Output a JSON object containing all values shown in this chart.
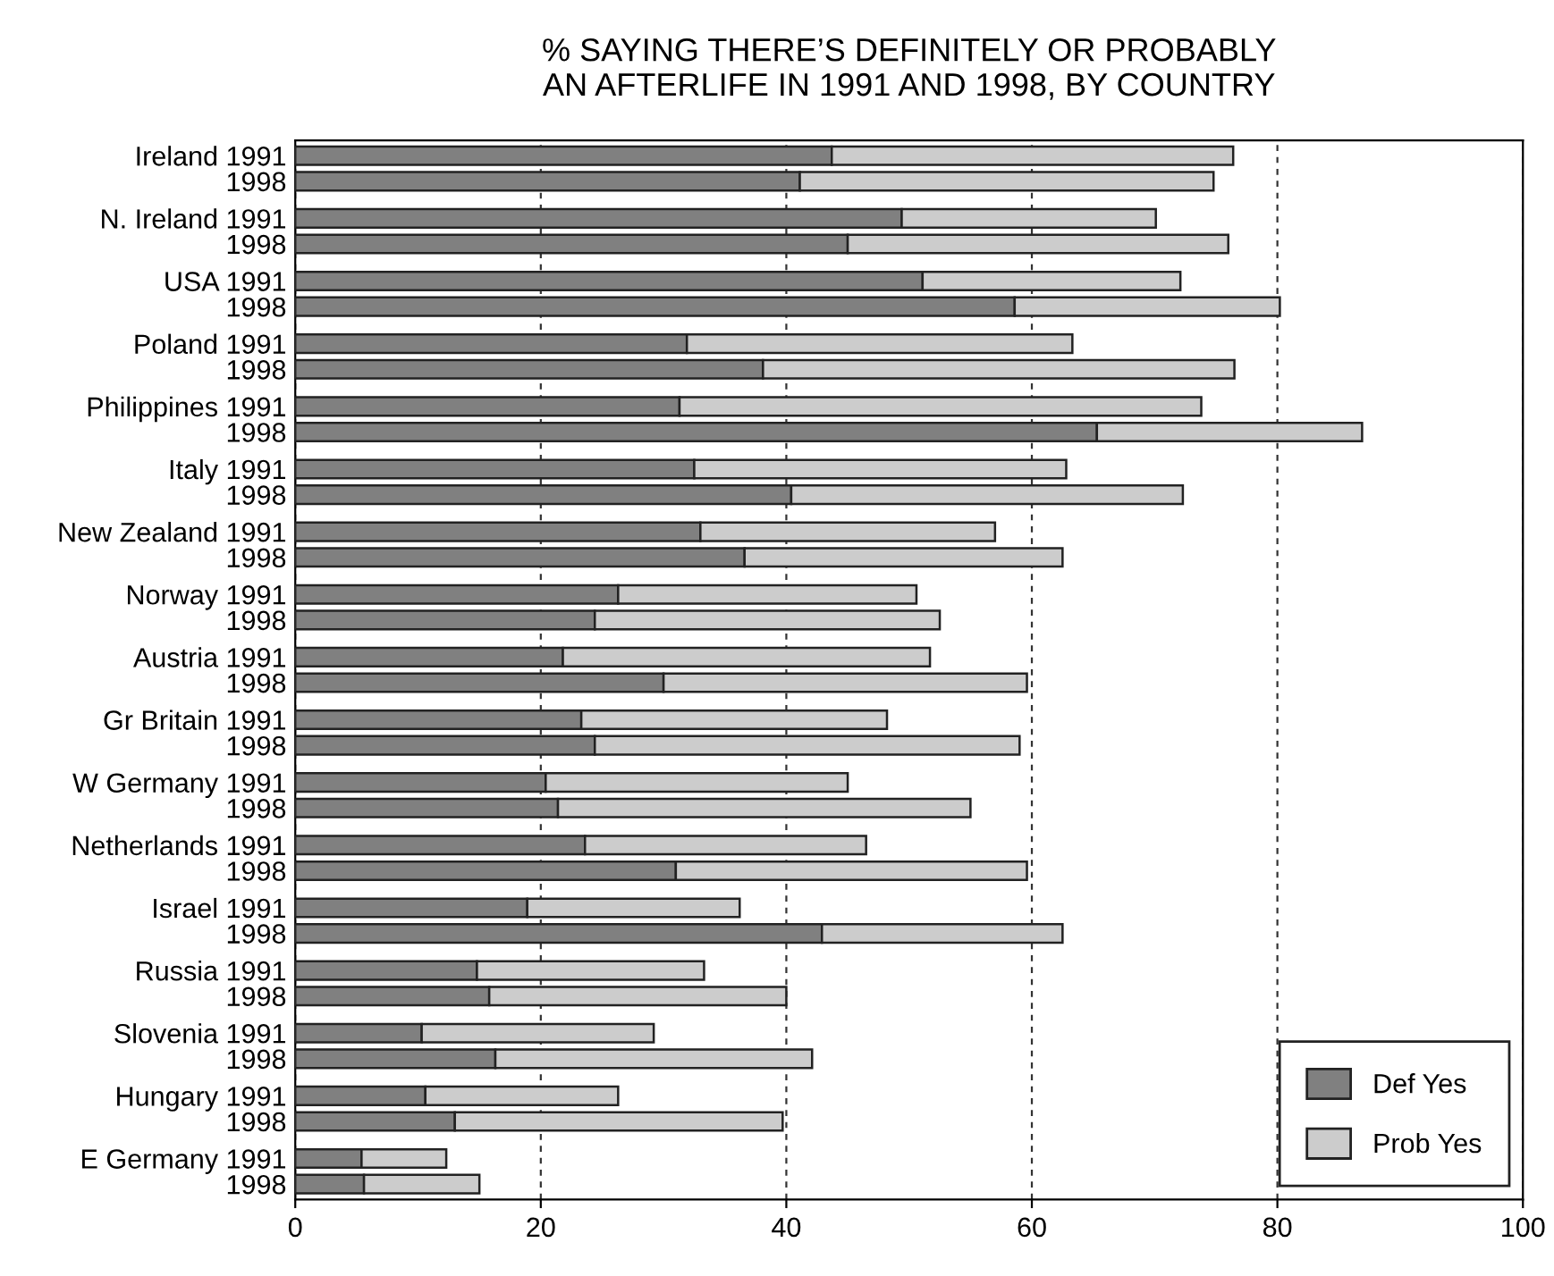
{
  "chart_data": {
    "type": "bar",
    "orientation": "horizontal",
    "stacked": true,
    "title": "% SAYING THERE’S DEFINITELY OR PROBABLY\nAN AFTERLIFE IN 1991 AND 1998, BY COUNTRY",
    "categories": [
      "Ireland 1991",
      "1998",
      "N. Ireland 1991",
      "1998",
      "USA 1991",
      "1998",
      "Poland 1991",
      "1998",
      "Philippines 1991",
      "1998",
      "Italy 1991",
      "1998",
      "New Zealand 1991",
      "1998",
      "Norway 1991",
      "1998",
      "Austria 1991",
      "1998",
      "Gr Britain 1991",
      "1998",
      "W Germany 1991",
      "1998",
      "Netherlands 1991",
      "1998",
      "Israel 1991",
      "1998",
      "Russia 1991",
      "1998",
      "Slovenia 1991",
      "1998",
      "Hungary 1991",
      "1998",
      "E Germany 1991",
      "1998"
    ],
    "series": [
      {
        "name": "Def Yes",
        "color": "#808080",
        "values": [
          43.7,
          41.1,
          49.4,
          45.0,
          51.1,
          58.6,
          31.9,
          38.1,
          31.3,
          65.3,
          32.5,
          40.4,
          33.0,
          36.6,
          26.3,
          24.4,
          21.8,
          30.0,
          23.3,
          24.4,
          20.4,
          21.4,
          23.6,
          31.0,
          18.9,
          42.9,
          14.8,
          15.8,
          10.3,
          16.3,
          10.6,
          13.0,
          5.4,
          5.6
        ]
      },
      {
        "name": "Prob Yes",
        "color": "#cccccc",
        "values": [
          32.7,
          33.7,
          20.7,
          31.0,
          21.0,
          21.6,
          31.4,
          38.4,
          42.5,
          21.6,
          30.3,
          31.9,
          24.0,
          25.9,
          24.3,
          28.1,
          29.9,
          29.6,
          24.9,
          34.6,
          24.6,
          33.6,
          22.9,
          28.6,
          17.3,
          19.6,
          18.5,
          24.2,
          18.9,
          25.8,
          15.7,
          26.7,
          6.9,
          9.4
        ]
      }
    ],
    "xlim": [
      0,
      100
    ],
    "xticks": [
      0,
      20,
      40,
      60,
      80,
      100
    ],
    "grid": "x",
    "legend": "bottom right"
  }
}
